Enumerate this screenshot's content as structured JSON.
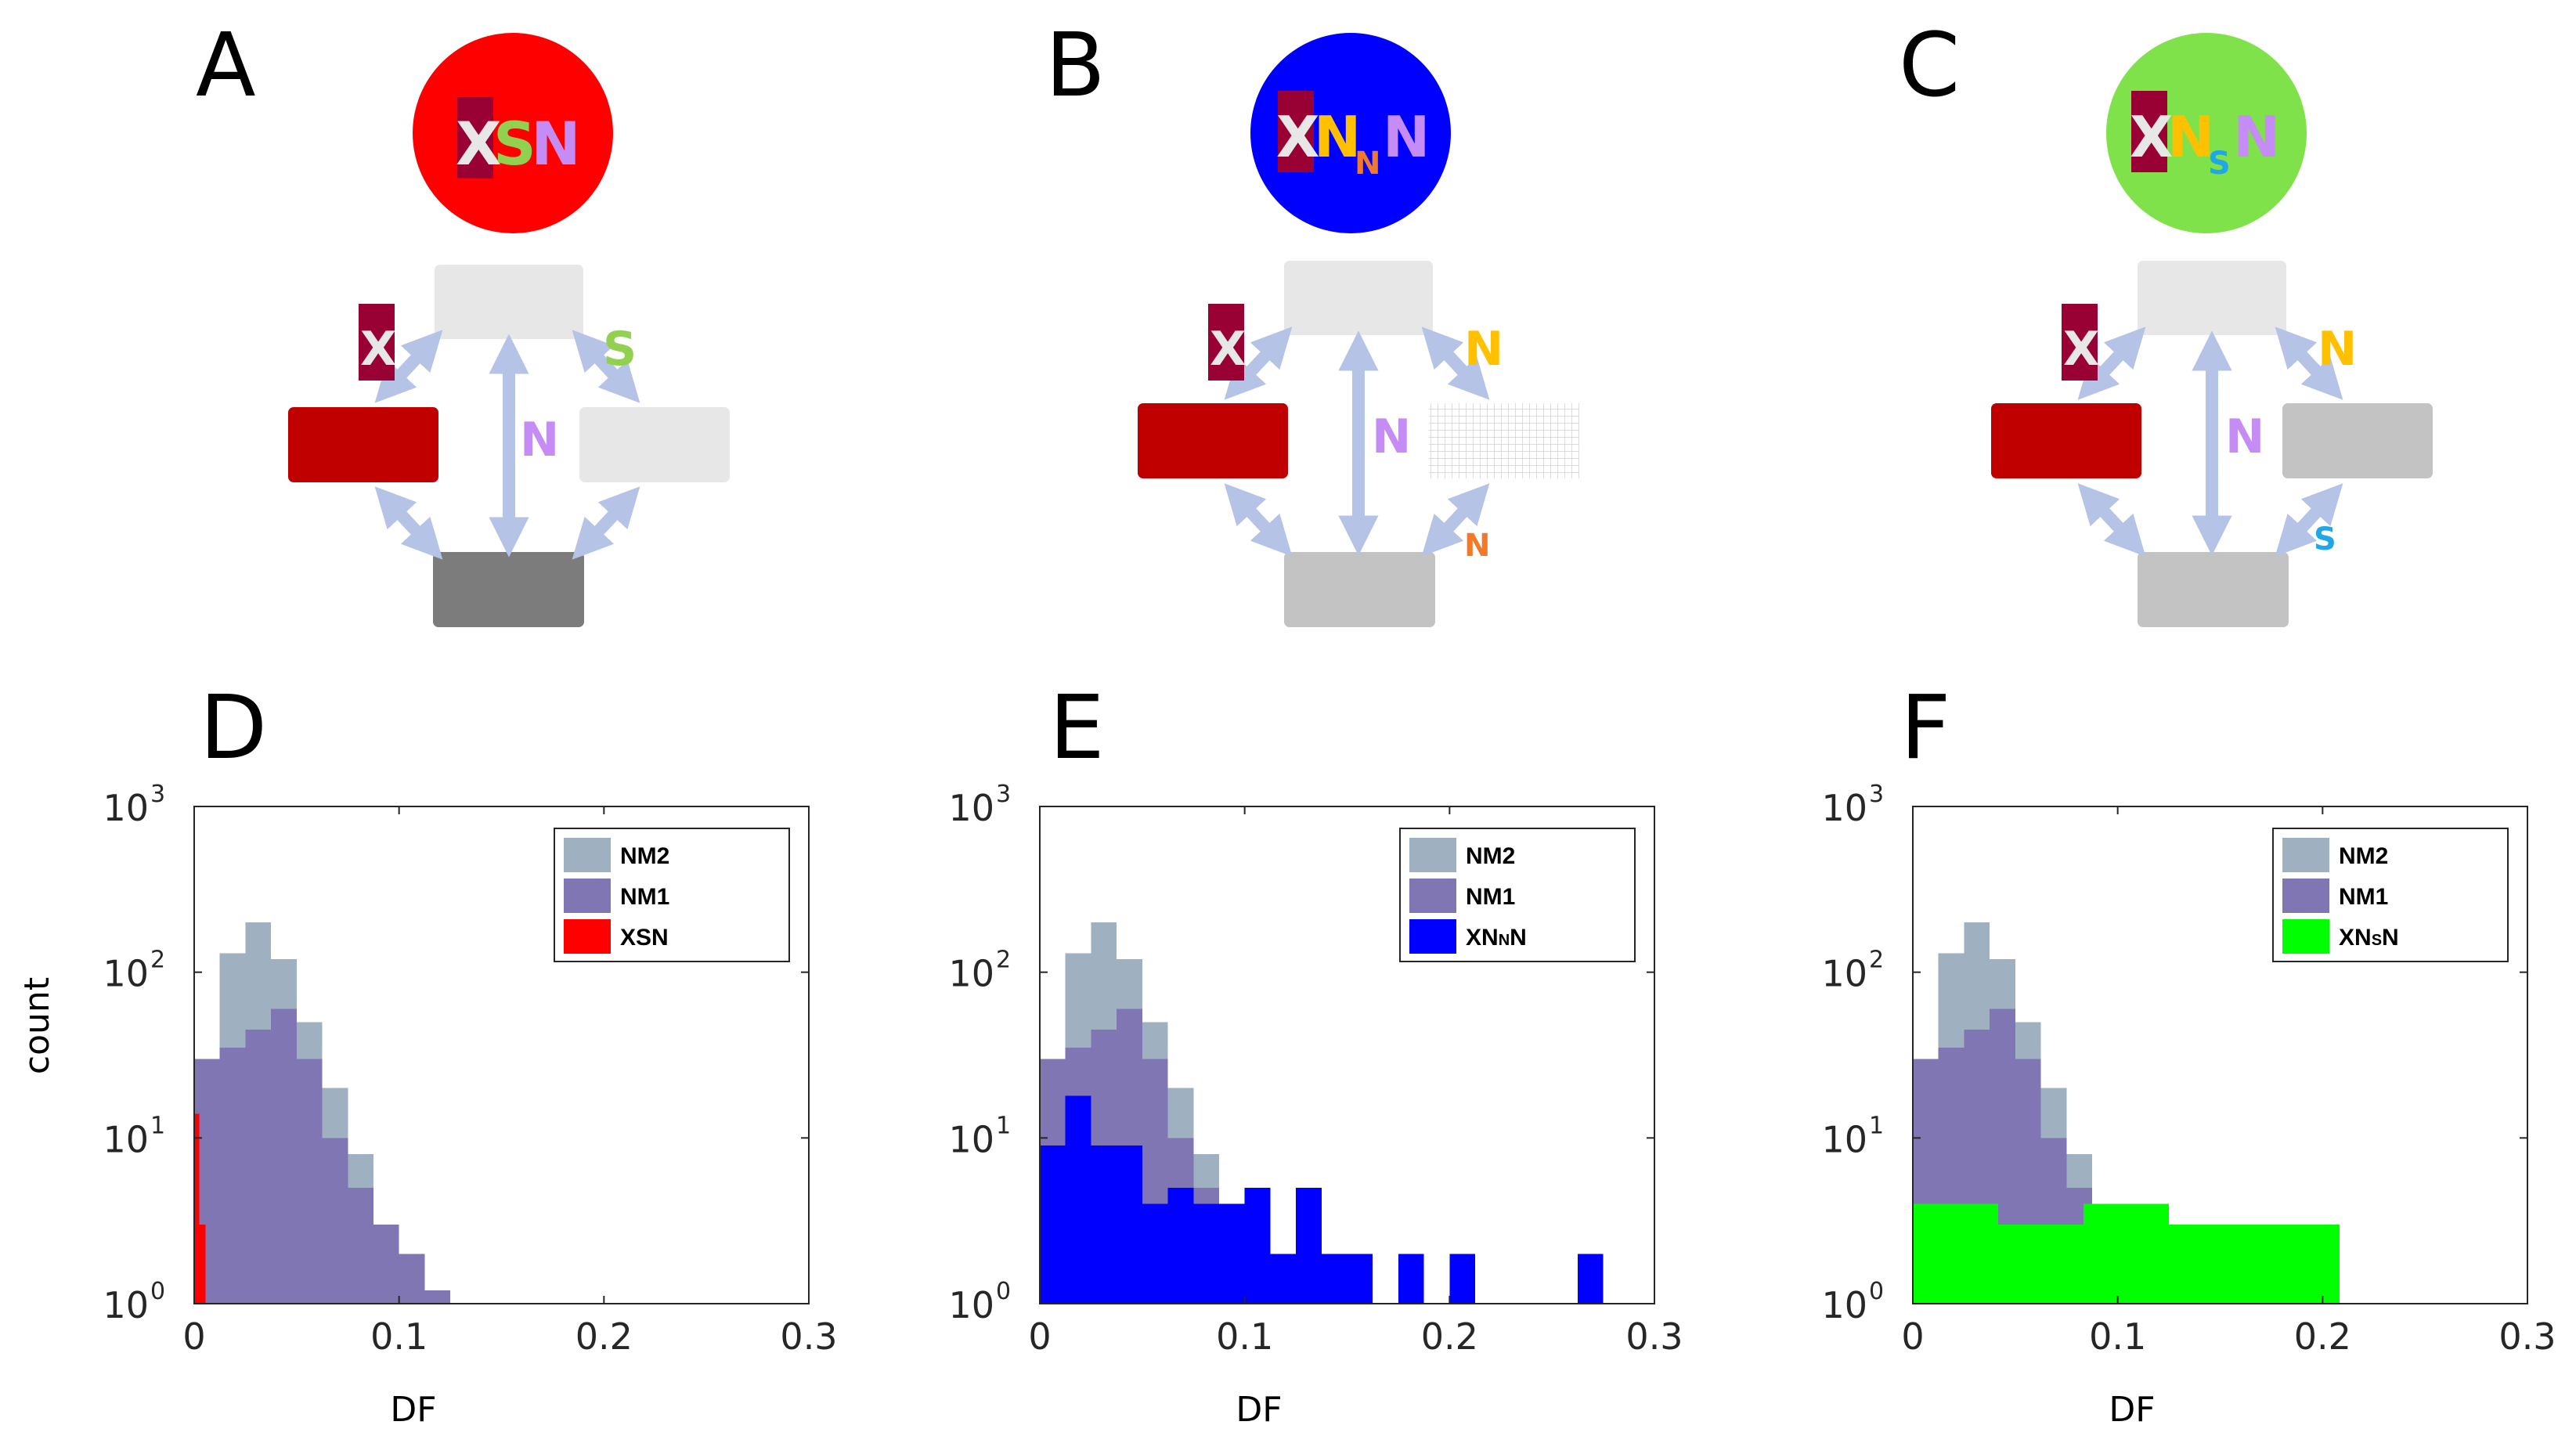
{
  "colors": {
    "red": "#ff0000",
    "blue": "#0000ff",
    "green": "#7fe24a",
    "green_bar": "#00ff00",
    "dark_red": "#990033",
    "crimson": "#c00000",
    "lavender": "#c58cf5",
    "lime": "#92d050",
    "gold": "#ffc000",
    "orange": "#f07a2a",
    "cyan": "#1fa7e8",
    "arrow": "#b4c3e6",
    "box_light": "#e7e7e7",
    "box_mid": "#c3c3c3",
    "box_dark": "#7c7c7c",
    "nm2": "#9fb0c1",
    "nm1": "#7f76b3"
  },
  "panels": {
    "A": {
      "letter": "A",
      "circle_letters": [
        "X",
        "S",
        "N"
      ],
      "circle_sub": "",
      "left_label": "X",
      "right_top_label": "S",
      "center_label": "N",
      "right_bottom_label": ""
    },
    "B": {
      "letter": "B",
      "circle_letters": [
        "X",
        "N",
        "N"
      ],
      "circle_sub": "N",
      "left_label": "X",
      "right_top_label": "N",
      "center_label": "N",
      "right_bottom_label": "N"
    },
    "C": {
      "letter": "C",
      "circle_letters": [
        "X",
        "N",
        "N"
      ],
      "circle_sub": "S",
      "left_label": "X",
      "right_top_label": "N",
      "center_label": "N",
      "right_bottom_label": "S"
    },
    "D": {
      "letter": "D"
    },
    "E": {
      "letter": "E"
    },
    "F": {
      "letter": "F"
    }
  },
  "chart_data": [
    {
      "type": "bar",
      "panel": "D",
      "title": "",
      "xlabel": "DF",
      "ylabel": "count",
      "xlim": [
        0,
        0.3
      ],
      "ylim": [
        1,
        1000
      ],
      "yscale": "log",
      "xticks": [
        "0",
        "0.1",
        "0.2",
        "0.3"
      ],
      "yticks": [
        {
          "base": "10",
          "exp": "0"
        },
        {
          "base": "10",
          "exp": "1"
        },
        {
          "base": "10",
          "exp": "2"
        },
        {
          "base": "10",
          "exp": "3"
        }
      ],
      "bin_width": 0.0125,
      "legend_position": "top-right",
      "series": [
        {
          "name": "NM2",
          "color": "#9fb0c1",
          "bins": [
            [
              0,
              0.0125,
              30
            ],
            [
              0.0125,
              0.025,
              130
            ],
            [
              0.025,
              0.0375,
              200
            ],
            [
              0.0375,
              0.05,
              120
            ],
            [
              0.05,
              0.0625,
              50
            ],
            [
              0.0625,
              0.075,
              20
            ],
            [
              0.075,
              0.0875,
              8
            ],
            [
              0.0875,
              0.1,
              3
            ],
            [
              0.1,
              0.1125,
              2
            ],
            [
              0.1125,
              0.125,
              1.2
            ]
          ]
        },
        {
          "name": "NM1",
          "color": "#7f76b3",
          "bins": [
            [
              0,
              0.0125,
              30
            ],
            [
              0.0125,
              0.025,
              35
            ],
            [
              0.025,
              0.0375,
              45
            ],
            [
              0.0375,
              0.05,
              60
            ],
            [
              0.05,
              0.0625,
              30
            ],
            [
              0.0625,
              0.075,
              10
            ],
            [
              0.075,
              0.0875,
              5
            ],
            [
              0.0875,
              0.1,
              3
            ],
            [
              0.1,
              0.1125,
              2
            ],
            [
              0.1125,
              0.125,
              1.2
            ]
          ]
        },
        {
          "name": "XSN",
          "color": "#ff0000",
          "label_parts": [
            {
              "text": "XSN",
              "sub": false
            }
          ],
          "bins": [
            [
              0,
              0.0025,
              14
            ],
            [
              0.0025,
              0.0055,
              3
            ]
          ]
        }
      ]
    },
    {
      "type": "bar",
      "panel": "E",
      "title": "",
      "xlabel": "DF",
      "ylabel": "",
      "xlim": [
        0,
        0.3
      ],
      "ylim": [
        1,
        1000
      ],
      "yscale": "log",
      "xticks": [
        "0",
        "0.1",
        "0.2",
        "0.3"
      ],
      "yticks": [
        {
          "base": "10",
          "exp": "0"
        },
        {
          "base": "10",
          "exp": "1"
        },
        {
          "base": "10",
          "exp": "2"
        },
        {
          "base": "10",
          "exp": "3"
        }
      ],
      "bin_width": 0.0125,
      "legend_position": "top-right",
      "series": [
        {
          "name": "NM2",
          "color": "#9fb0c1",
          "bins": [
            [
              0,
              0.0125,
              30
            ],
            [
              0.0125,
              0.025,
              130
            ],
            [
              0.025,
              0.0375,
              200
            ],
            [
              0.0375,
              0.05,
              120
            ],
            [
              0.05,
              0.0625,
              50
            ],
            [
              0.0625,
              0.075,
              20
            ],
            [
              0.075,
              0.0875,
              8
            ],
            [
              0.0875,
              0.1,
              3
            ],
            [
              0.1,
              0.1125,
              2
            ],
            [
              0.1125,
              0.125,
              1.2
            ]
          ]
        },
        {
          "name": "NM1",
          "color": "#7f76b3",
          "bins": [
            [
              0,
              0.0125,
              30
            ],
            [
              0.0125,
              0.025,
              35
            ],
            [
              0.025,
              0.0375,
              45
            ],
            [
              0.0375,
              0.05,
              60
            ],
            [
              0.05,
              0.0625,
              30
            ],
            [
              0.0625,
              0.075,
              10
            ],
            [
              0.075,
              0.0875,
              5
            ],
            [
              0.0875,
              0.1,
              3
            ],
            [
              0.1,
              0.1125,
              2
            ],
            [
              0.1125,
              0.125,
              1.2
            ]
          ]
        },
        {
          "name": "XNNN",
          "color": "#0000ff",
          "label_parts": [
            {
              "text": "XN",
              "sub": false
            },
            {
              "text": "N",
              "sub": true
            },
            {
              "text": "N",
              "sub": false
            }
          ],
          "bins": [
            [
              0,
              0.0125,
              9
            ],
            [
              0.0125,
              0.025,
              18
            ],
            [
              0.025,
              0.0375,
              9
            ],
            [
              0.0375,
              0.05,
              9
            ],
            [
              0.05,
              0.0625,
              4
            ],
            [
              0.0625,
              0.075,
              5
            ],
            [
              0.075,
              0.0875,
              4
            ],
            [
              0.0875,
              0.1,
              4
            ],
            [
              0.1,
              0.1125,
              5
            ],
            [
              0.1125,
              0.125,
              2
            ],
            [
              0.125,
              0.1375,
              5
            ],
            [
              0.1375,
              0.15,
              2
            ],
            [
              0.15,
              0.1625,
              2
            ],
            [
              0.175,
              0.1875,
              2
            ],
            [
              0.2,
              0.2125,
              2
            ],
            [
              0.2625,
              0.275,
              2
            ]
          ]
        }
      ]
    },
    {
      "type": "bar",
      "panel": "F",
      "title": "",
      "xlabel": "DF",
      "ylabel": "",
      "xlim": [
        0,
        0.3
      ],
      "ylim": [
        1,
        1000
      ],
      "yscale": "log",
      "xticks": [
        "0",
        "0.1",
        "0.2",
        "0.3"
      ],
      "yticks": [
        {
          "base": "10",
          "exp": "0"
        },
        {
          "base": "10",
          "exp": "1"
        },
        {
          "base": "10",
          "exp": "2"
        },
        {
          "base": "10",
          "exp": "3"
        }
      ],
      "bin_width": 0.0125,
      "legend_position": "top-right",
      "series": [
        {
          "name": "NM2",
          "color": "#9fb0c1",
          "bins": [
            [
              0,
              0.0125,
              30
            ],
            [
              0.0125,
              0.025,
              130
            ],
            [
              0.025,
              0.0375,
              200
            ],
            [
              0.0375,
              0.05,
              120
            ],
            [
              0.05,
              0.0625,
              50
            ],
            [
              0.0625,
              0.075,
              20
            ],
            [
              0.075,
              0.0875,
              8
            ],
            [
              0.0875,
              0.1,
              3
            ],
            [
              0.1,
              0.1125,
              2
            ],
            [
              0.1125,
              0.125,
              1.2
            ]
          ]
        },
        {
          "name": "NM1",
          "color": "#7f76b3",
          "bins": [
            [
              0,
              0.0125,
              30
            ],
            [
              0.0125,
              0.025,
              35
            ],
            [
              0.025,
              0.0375,
              45
            ],
            [
              0.0375,
              0.05,
              60
            ],
            [
              0.05,
              0.0625,
              30
            ],
            [
              0.0625,
              0.075,
              10
            ],
            [
              0.075,
              0.0875,
              5
            ],
            [
              0.0875,
              0.1,
              3
            ],
            [
              0.1,
              0.1125,
              2
            ],
            [
              0.1125,
              0.125,
              1.2
            ]
          ]
        },
        {
          "name": "XNSN",
          "color": "#00ff00",
          "label_parts": [
            {
              "text": "XN",
              "sub": false
            },
            {
              "text": "S",
              "sub": true
            },
            {
              "text": "N",
              "sub": false
            }
          ],
          "bins": [
            [
              0,
              0.0417,
              4
            ],
            [
              0.0417,
              0.0833,
              3
            ],
            [
              0.0833,
              0.125,
              4
            ],
            [
              0.125,
              0.2083,
              3
            ]
          ]
        }
      ]
    }
  ]
}
